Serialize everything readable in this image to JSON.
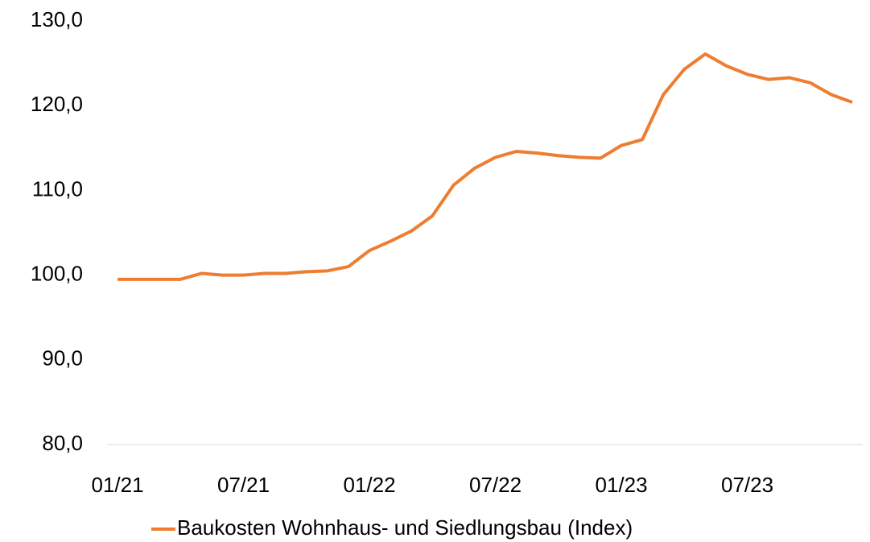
{
  "chart_data": {
    "type": "line",
    "categories": [
      "01/21",
      null,
      null,
      null,
      null,
      null,
      "07/21",
      null,
      null,
      null,
      null,
      null,
      "01/22",
      null,
      null,
      null,
      null,
      null,
      "07/22",
      null,
      null,
      null,
      null,
      null,
      "01/23",
      null,
      null,
      null,
      null,
      null,
      "07/23",
      null,
      null,
      null,
      null,
      null
    ],
    "series": [
      {
        "name": "Baukosten Wohnhaus- und Siedlungsbau (Index)",
        "color": "#ed7d31",
        "values": [
          99.5,
          99.5,
          99.5,
          99.5,
          100.2,
          100.0,
          100.0,
          100.2,
          100.2,
          100.4,
          100.5,
          101.0,
          102.9,
          104.0,
          105.2,
          107.0,
          110.6,
          112.6,
          113.9,
          114.6,
          114.4,
          114.1,
          113.9,
          113.8,
          115.3,
          116.0,
          121.3,
          124.3,
          126.1,
          124.7,
          123.7,
          123.1,
          123.3,
          122.7,
          121.3,
          120.4
        ]
      }
    ],
    "ylim": [
      80,
      130
    ],
    "yticks": [
      {
        "value": 80,
        "label": "80,0"
      },
      {
        "value": 90,
        "label": "90,0"
      },
      {
        "value": 100,
        "label": "100,0"
      },
      {
        "value": 110,
        "label": "110,0"
      },
      {
        "value": 120,
        "label": "120,0"
      },
      {
        "value": 130,
        "label": "130,0"
      }
    ],
    "grid": false,
    "legend": "bottom"
  }
}
